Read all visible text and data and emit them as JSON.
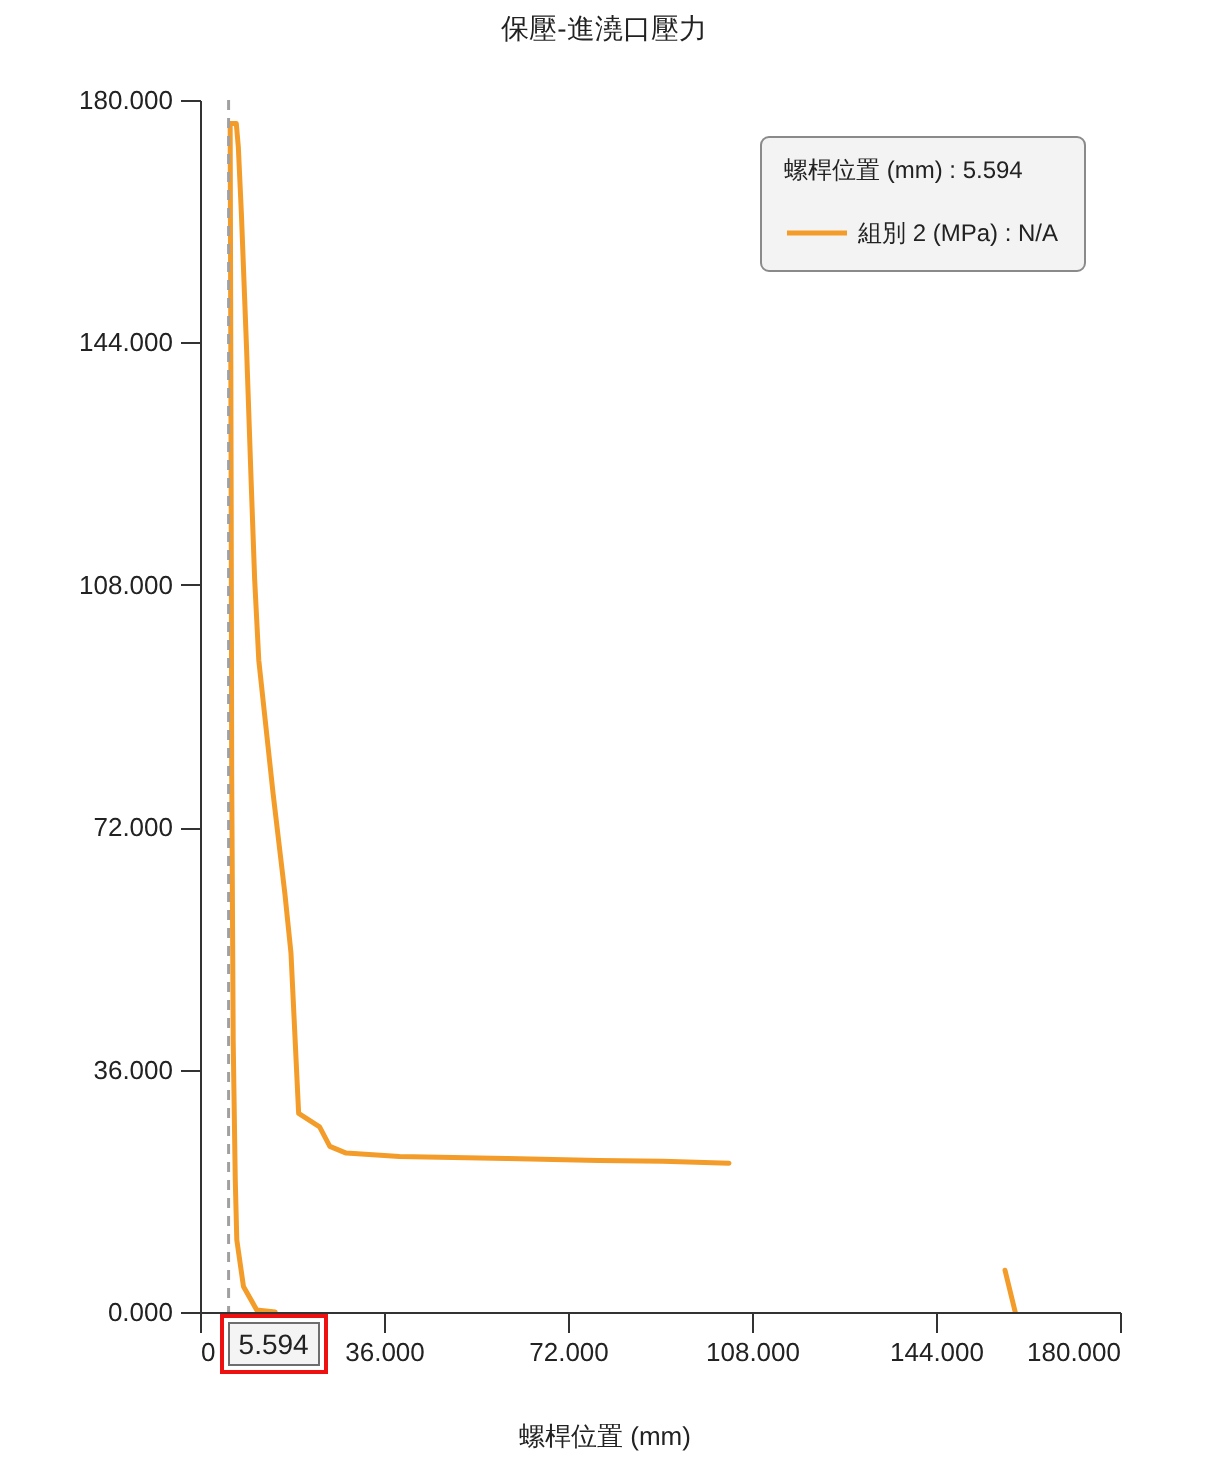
{
  "chart_data": {
    "type": "line",
    "title": "保壓-進澆口壓力",
    "xlabel": "螺桿位置 (mm)",
    "x": [
      159.5,
      157.5,
      130,
      103.5,
      90.6,
      78,
      60,
      39,
      28.6,
      25.4,
      23.4,
      19.3,
      17.8,
      16.6,
      14.3,
      11.5,
      10.7,
      10.0,
      9.1,
      8.1,
      7.5,
      7.1,
      5.9,
      6.0,
      6.1,
      6.2,
      6.5,
      6.9,
      7.2,
      8.5,
      11.1,
      14.7
    ],
    "series": [
      {
        "name": "組別 2 (MPa) : N/A",
        "color": "#f39c29",
        "values": [
          0,
          6.2,
          null,
          22.1,
          22.4,
          22.5,
          22.8,
          23.1,
          23.6,
          24.6,
          27.5,
          29.5,
          53.3,
          62.2,
          77.0,
          96.8,
          108.7,
          123.5,
          143.3,
          163.1,
          173,
          176.5,
          176.5,
          150,
          120,
          80,
          40,
          19.6,
          10.7,
          3.8,
          0.3,
          0
        ]
      }
    ],
    "xlim": [
      0,
      180
    ],
    "xticks": [
      0,
      {
        "value": 36,
        "label": "36.000"
      },
      {
        "value": 72,
        "label": "72.000"
      },
      {
        "value": 108,
        "label": "108.000"
      },
      {
        "value": 144,
        "label": "144.000"
      },
      {
        "value": 180,
        "label": "180.000"
      }
    ],
    "ylim": [
      0,
      180
    ],
    "yticks": [
      {
        "value": 0,
        "label": "0.000"
      },
      {
        "value": 36,
        "label": "36.000"
      },
      {
        "value": 72,
        "label": "72.000"
      },
      {
        "value": 108,
        "label": "108.000"
      },
      {
        "value": 144,
        "label": "144.000"
      },
      {
        "value": 180,
        "label": "180.000"
      }
    ],
    "ref_lines": [
      {
        "axis": "x",
        "value": 5.594,
        "label": "5.594",
        "color": "#a0a0a0",
        "line_style": "dashed"
      }
    ],
    "legend": "top right",
    "legend_title": "螺桿位置 (mm) : 5.594"
  }
}
